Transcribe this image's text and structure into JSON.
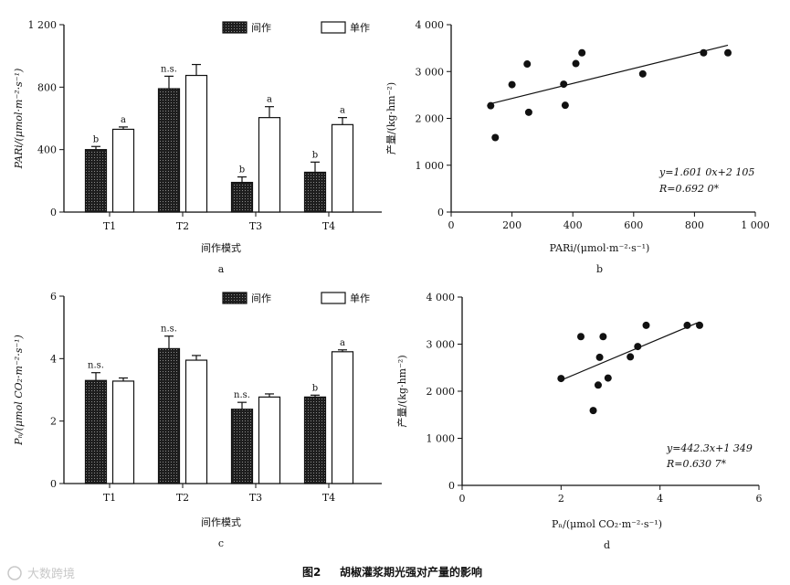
{
  "chart_data": [
    {
      "id": "a",
      "type": "bar",
      "panel_label": "a",
      "ylabel": "PARi/(μmol·m⁻²·s⁻¹)",
      "xlabel": "间作模式",
      "categories": [
        "T1",
        "T2",
        "T3",
        "T4"
      ],
      "ylim": [
        0,
        1200
      ],
      "yticks": [
        0,
        400,
        800,
        1200
      ],
      "ytick_labels": [
        "0",
        "400",
        "800",
        "1 200"
      ],
      "series": [
        {
          "name": "间作",
          "pattern": "dotted-dark",
          "values": [
            400,
            790,
            190,
            255
          ],
          "errors": [
            20,
            80,
            35,
            65
          ]
        },
        {
          "name": "单作",
          "pattern": "white",
          "values": [
            530,
            875,
            605,
            560
          ],
          "errors": [
            15,
            70,
            70,
            45
          ]
        }
      ],
      "significance": [
        [
          "b",
          "a"
        ],
        [
          "n.s.",
          ""
        ],
        [
          "b",
          "a"
        ],
        [
          "b",
          "a"
        ]
      ]
    },
    {
      "id": "b",
      "type": "scatter",
      "panel_label": "b",
      "ylabel": "产量/(kg·hm⁻²)",
      "xlabel": "PARi/(μmol·m⁻²·s⁻¹)",
      "xlim": [
        0,
        1000
      ],
      "ylim": [
        0,
        4000
      ],
      "xticks": [
        0,
        200,
        400,
        600,
        800,
        1000
      ],
      "xtick_labels": [
        "0",
        "200",
        "400",
        "600",
        "800",
        "1 000"
      ],
      "yticks": [
        0,
        1000,
        2000,
        3000,
        4000
      ],
      "ytick_labels": [
        "0",
        "1 000",
        "2 000",
        "3 000",
        "4 000"
      ],
      "points": [
        {
          "x": 130,
          "y": 2270
        },
        {
          "x": 145,
          "y": 1590
        },
        {
          "x": 200,
          "y": 2720
        },
        {
          "x": 250,
          "y": 3160
        },
        {
          "x": 255,
          "y": 2130
        },
        {
          "x": 370,
          "y": 2730
        },
        {
          "x": 375,
          "y": 2280
        },
        {
          "x": 410,
          "y": 3170
        },
        {
          "x": 430,
          "y": 3400
        },
        {
          "x": 630,
          "y": 2950
        },
        {
          "x": 830,
          "y": 3400
        },
        {
          "x": 910,
          "y": 3400
        }
      ],
      "fit": {
        "slope": 1.601,
        "intercept": 2105,
        "x_range": [
          130,
          910
        ]
      },
      "equation": "y=1.601 0x+2 105",
      "r_text": "R=0.692 0*"
    },
    {
      "id": "c",
      "type": "bar",
      "panel_label": "c",
      "ylabel": "Pₙ/(μmol CO₂·m⁻²·s⁻¹)",
      "xlabel": "间作模式",
      "categories": [
        "T1",
        "T2",
        "T3",
        "T4"
      ],
      "ylim": [
        0,
        6
      ],
      "yticks": [
        0,
        2,
        4,
        6
      ],
      "ytick_labels": [
        "0",
        "2",
        "4",
        "6"
      ],
      "series": [
        {
          "name": "间作",
          "pattern": "dotted-dark",
          "values": [
            3.3,
            4.32,
            2.38,
            2.77
          ],
          "errors": [
            0.25,
            0.4,
            0.22,
            0.06
          ]
        },
        {
          "name": "单作",
          "pattern": "white",
          "values": [
            3.28,
            3.95,
            2.77,
            4.22
          ],
          "errors": [
            0.1,
            0.15,
            0.1,
            0.06
          ]
        }
      ],
      "significance": [
        [
          "n.s.",
          ""
        ],
        [
          "n.s.",
          ""
        ],
        [
          "n.s.",
          ""
        ],
        [
          "b",
          "a"
        ]
      ]
    },
    {
      "id": "d",
      "type": "scatter",
      "panel_label": "d",
      "ylabel": "产量/(kg·hm⁻²)",
      "xlabel": "Pₙ/(μmol CO₂·m⁻²·s⁻¹)",
      "xlim": [
        0,
        6
      ],
      "ylim": [
        0,
        4000
      ],
      "xticks": [
        0,
        2,
        4,
        6
      ],
      "xtick_labels": [
        "0",
        "2",
        "4",
        "6"
      ],
      "yticks": [
        0,
        1000,
        2000,
        3000,
        4000
      ],
      "ytick_labels": [
        "0",
        "1 000",
        "2 000",
        "3 000",
        "4 000"
      ],
      "points": [
        {
          "x": 2.0,
          "y": 2270
        },
        {
          "x": 2.4,
          "y": 3160
        },
        {
          "x": 2.65,
          "y": 1590
        },
        {
          "x": 2.75,
          "y": 2130
        },
        {
          "x": 2.78,
          "y": 2720
        },
        {
          "x": 2.85,
          "y": 3160
        },
        {
          "x": 2.95,
          "y": 2280
        },
        {
          "x": 3.4,
          "y": 2730
        },
        {
          "x": 3.55,
          "y": 2950
        },
        {
          "x": 3.72,
          "y": 3400
        },
        {
          "x": 4.55,
          "y": 3400
        },
        {
          "x": 4.8,
          "y": 3400
        }
      ],
      "fit": {
        "slope": 442.3,
        "intercept": 1349,
        "x_range": [
          2.0,
          4.8
        ]
      },
      "equation": "y=442.3x+1 349",
      "r_text": "R=0.630 7*"
    }
  ],
  "caption": {
    "number": "图2",
    "text": "胡椒灌浆期光强对产量的影响"
  },
  "watermark": "大数跨境"
}
